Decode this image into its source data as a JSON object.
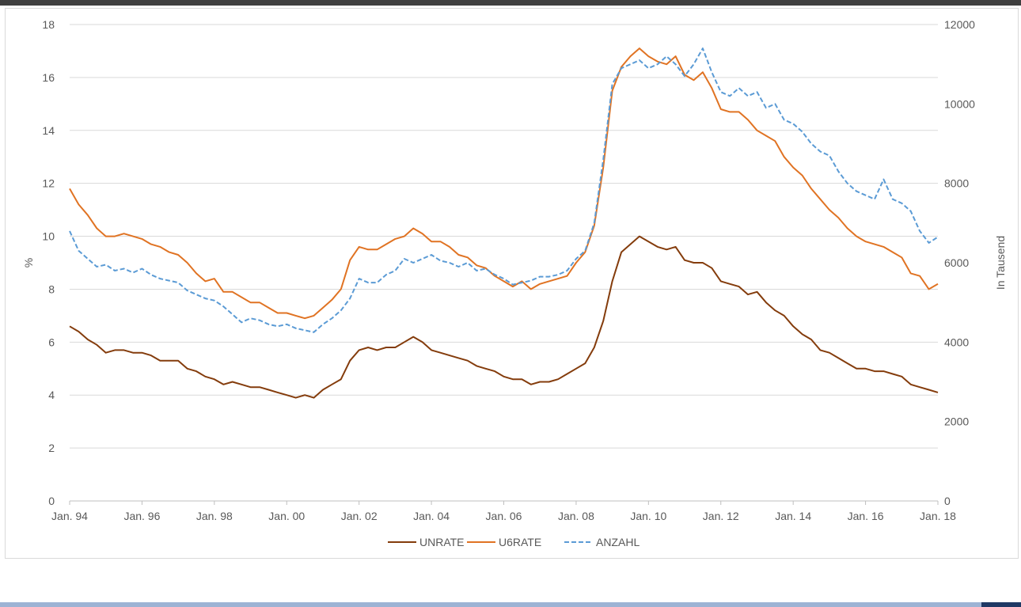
{
  "chart_data": {
    "type": "line",
    "title": "",
    "xlabel": "",
    "ylabel": "%",
    "y2label": "In Tausend",
    "xlim": [
      1994.0,
      2018.0
    ],
    "ylim": [
      0,
      18
    ],
    "y2lim": [
      0,
      12000
    ],
    "yticks": [
      0,
      2,
      4,
      6,
      8,
      10,
      12,
      14,
      16,
      18
    ],
    "y2ticks": [
      0,
      2000,
      4000,
      6000,
      8000,
      10000,
      12000
    ],
    "xticks": [
      {
        "x": 1994,
        "label": "Jan. 94"
      },
      {
        "x": 1996,
        "label": "Jan. 96"
      },
      {
        "x": 1998,
        "label": "Jan. 98"
      },
      {
        "x": 2000,
        "label": "Jan. 00"
      },
      {
        "x": 2002,
        "label": "Jan. 02"
      },
      {
        "x": 2004,
        "label": "Jan. 04"
      },
      {
        "x": 2006,
        "label": "Jan. 06"
      },
      {
        "x": 2008,
        "label": "Jan. 08"
      },
      {
        "x": 2010,
        "label": "Jan. 10"
      },
      {
        "x": 2012,
        "label": "Jan. 12"
      },
      {
        "x": 2014,
        "label": "Jan. 14"
      },
      {
        "x": 2016,
        "label": "Jan. 16"
      },
      {
        "x": 2018,
        "label": "Jan. 18"
      }
    ],
    "grid": true,
    "legend": "bottom",
    "series": [
      {
        "name": "UNRATE",
        "axis": "left",
        "color": "#843c0c",
        "dash": "solid",
        "x": [
          1994.0,
          1994.25,
          1994.5,
          1994.75,
          1995.0,
          1995.25,
          1995.5,
          1995.75,
          1996.0,
          1996.25,
          1996.5,
          1996.75,
          1997.0,
          1997.25,
          1997.5,
          1997.75,
          1998.0,
          1998.25,
          1998.5,
          1998.75,
          1999.0,
          1999.25,
          1999.5,
          1999.75,
          2000.0,
          2000.25,
          2000.5,
          2000.75,
          2001.0,
          2001.25,
          2001.5,
          2001.75,
          2002.0,
          2002.25,
          2002.5,
          2002.75,
          2003.0,
          2003.25,
          2003.5,
          2003.75,
          2004.0,
          2004.25,
          2004.5,
          2004.75,
          2005.0,
          2005.25,
          2005.5,
          2005.75,
          2006.0,
          2006.25,
          2006.5,
          2006.75,
          2007.0,
          2007.25,
          2007.5,
          2007.75,
          2008.0,
          2008.25,
          2008.5,
          2008.75,
          2009.0,
          2009.25,
          2009.5,
          2009.75,
          2010.0,
          2010.25,
          2010.5,
          2010.75,
          2011.0,
          2011.25,
          2011.5,
          2011.75,
          2012.0,
          2012.25,
          2012.5,
          2012.75,
          2013.0,
          2013.25,
          2013.5,
          2013.75,
          2014.0,
          2014.25,
          2014.5,
          2014.75,
          2015.0,
          2015.25,
          2015.5,
          2015.75,
          2016.0,
          2016.25,
          2016.5,
          2016.75,
          2017.0,
          2017.25,
          2017.5,
          2017.75,
          2018.0
        ],
        "values": [
          6.6,
          6.4,
          6.1,
          5.9,
          5.6,
          5.7,
          5.7,
          5.6,
          5.6,
          5.5,
          5.3,
          5.3,
          5.3,
          5.0,
          4.9,
          4.7,
          4.6,
          4.4,
          4.5,
          4.4,
          4.3,
          4.3,
          4.2,
          4.1,
          4.0,
          3.9,
          4.0,
          3.9,
          4.2,
          4.4,
          4.6,
          5.3,
          5.7,
          5.8,
          5.7,
          5.8,
          5.8,
          6.0,
          6.2,
          6.0,
          5.7,
          5.6,
          5.5,
          5.4,
          5.3,
          5.1,
          5.0,
          4.9,
          4.7,
          4.6,
          4.6,
          4.4,
          4.5,
          4.5,
          4.6,
          4.8,
          5.0,
          5.2,
          5.8,
          6.8,
          8.3,
          9.4,
          9.7,
          10.0,
          9.8,
          9.6,
          9.5,
          9.6,
          9.1,
          9.0,
          9.0,
          8.8,
          8.3,
          8.2,
          8.1,
          7.8,
          7.9,
          7.5,
          7.2,
          7.0,
          6.6,
          6.3,
          6.1,
          5.7,
          5.6,
          5.4,
          5.2,
          5.0,
          5.0,
          4.9,
          4.9,
          4.8,
          4.7,
          4.4,
          4.3,
          4.2,
          4.1
        ]
      },
      {
        "name": "U6RATE",
        "axis": "left",
        "color": "#e07323",
        "dash": "solid",
        "x": [
          1994.0,
          1994.25,
          1994.5,
          1994.75,
          1995.0,
          1995.25,
          1995.5,
          1995.75,
          1996.0,
          1996.25,
          1996.5,
          1996.75,
          1997.0,
          1997.25,
          1997.5,
          1997.75,
          1998.0,
          1998.25,
          1998.5,
          1998.75,
          1999.0,
          1999.25,
          1999.5,
          1999.75,
          2000.0,
          2000.25,
          2000.5,
          2000.75,
          2001.0,
          2001.25,
          2001.5,
          2001.75,
          2002.0,
          2002.25,
          2002.5,
          2002.75,
          2003.0,
          2003.25,
          2003.5,
          2003.75,
          2004.0,
          2004.25,
          2004.5,
          2004.75,
          2005.0,
          2005.25,
          2005.5,
          2005.75,
          2006.0,
          2006.25,
          2006.5,
          2006.75,
          2007.0,
          2007.25,
          2007.5,
          2007.75,
          2008.0,
          2008.25,
          2008.5,
          2008.75,
          2009.0,
          2009.25,
          2009.5,
          2009.75,
          2010.0,
          2010.25,
          2010.5,
          2010.75,
          2011.0,
          2011.25,
          2011.5,
          2011.75,
          2012.0,
          2012.25,
          2012.5,
          2012.75,
          2013.0,
          2013.25,
          2013.5,
          2013.75,
          2014.0,
          2014.25,
          2014.5,
          2014.75,
          2015.0,
          2015.25,
          2015.5,
          2015.75,
          2016.0,
          2016.25,
          2016.5,
          2016.75,
          2017.0,
          2017.25,
          2017.5,
          2017.75,
          2018.0
        ],
        "values": [
          11.8,
          11.2,
          10.8,
          10.3,
          10.0,
          10.0,
          10.1,
          10.0,
          9.9,
          9.7,
          9.6,
          9.4,
          9.3,
          9.0,
          8.6,
          8.3,
          8.4,
          7.9,
          7.9,
          7.7,
          7.5,
          7.5,
          7.3,
          7.1,
          7.1,
          7.0,
          6.9,
          7.0,
          7.3,
          7.6,
          8.0,
          9.1,
          9.6,
          9.5,
          9.5,
          9.7,
          9.9,
          10.0,
          10.3,
          10.1,
          9.8,
          9.8,
          9.6,
          9.3,
          9.2,
          8.9,
          8.8,
          8.5,
          8.3,
          8.1,
          8.3,
          8.0,
          8.2,
          8.3,
          8.4,
          8.5,
          9.0,
          9.4,
          10.4,
          12.6,
          15.5,
          16.4,
          16.8,
          17.1,
          16.8,
          16.6,
          16.5,
          16.8,
          16.1,
          15.9,
          16.2,
          15.6,
          14.8,
          14.7,
          14.7,
          14.4,
          14.0,
          13.8,
          13.6,
          13.0,
          12.6,
          12.3,
          11.8,
          11.4,
          11.0,
          10.7,
          10.3,
          10.0,
          9.8,
          9.7,
          9.6,
          9.4,
          9.2,
          8.6,
          8.5,
          8.0,
          8.2
        ]
      },
      {
        "name": "ANZAHL",
        "axis": "right",
        "color": "#5b9bd5",
        "dash": "dashed",
        "x": [
          1994.0,
          1994.25,
          1994.5,
          1994.75,
          1995.0,
          1995.25,
          1995.5,
          1995.75,
          1996.0,
          1996.25,
          1996.5,
          1996.75,
          1997.0,
          1997.25,
          1997.5,
          1997.75,
          1998.0,
          1998.25,
          1998.5,
          1998.75,
          1999.0,
          1999.25,
          1999.5,
          1999.75,
          2000.0,
          2000.25,
          2000.5,
          2000.75,
          2001.0,
          2001.25,
          2001.5,
          2001.75,
          2002.0,
          2002.25,
          2002.5,
          2002.75,
          2003.0,
          2003.25,
          2003.5,
          2003.75,
          2004.0,
          2004.25,
          2004.5,
          2004.75,
          2005.0,
          2005.25,
          2005.5,
          2005.75,
          2006.0,
          2006.25,
          2006.5,
          2006.75,
          2007.0,
          2007.25,
          2007.5,
          2007.75,
          2008.0,
          2008.25,
          2008.5,
          2008.75,
          2009.0,
          2009.25,
          2009.5,
          2009.75,
          2010.0,
          2010.25,
          2010.5,
          2010.75,
          2011.0,
          2011.25,
          2011.5,
          2011.75,
          2012.0,
          2012.25,
          2012.5,
          2012.75,
          2013.0,
          2013.25,
          2013.5,
          2013.75,
          2014.0,
          2014.25,
          2014.5,
          2014.75,
          2015.0,
          2015.25,
          2015.5,
          2015.75,
          2016.0,
          2016.25,
          2016.5,
          2016.75,
          2017.0,
          2017.25,
          2017.5,
          2017.75,
          2018.0
        ],
        "values": [
          6800,
          6300,
          6100,
          5900,
          5950,
          5800,
          5850,
          5750,
          5850,
          5700,
          5600,
          5550,
          5500,
          5300,
          5200,
          5100,
          5050,
          4900,
          4700,
          4500,
          4600,
          4550,
          4450,
          4400,
          4450,
          4350,
          4300,
          4250,
          4450,
          4600,
          4800,
          5100,
          5600,
          5500,
          5500,
          5700,
          5800,
          6100,
          6000,
          6100,
          6200,
          6050,
          6000,
          5900,
          6000,
          5800,
          5850,
          5700,
          5600,
          5450,
          5500,
          5550,
          5650,
          5650,
          5700,
          5800,
          6100,
          6300,
          7000,
          8600,
          10500,
          10900,
          11000,
          11100,
          10900,
          11000,
          11200,
          11000,
          10700,
          11000,
          11400,
          10800,
          10300,
          10200,
          10400,
          10200,
          10300,
          9900,
          10000,
          9600,
          9500,
          9300,
          9000,
          8800,
          8700,
          8300,
          8000,
          7800,
          7700,
          7600,
          8100,
          7600,
          7500,
          7300,
          6800,
          6500,
          6650
        ]
      }
    ]
  }
}
